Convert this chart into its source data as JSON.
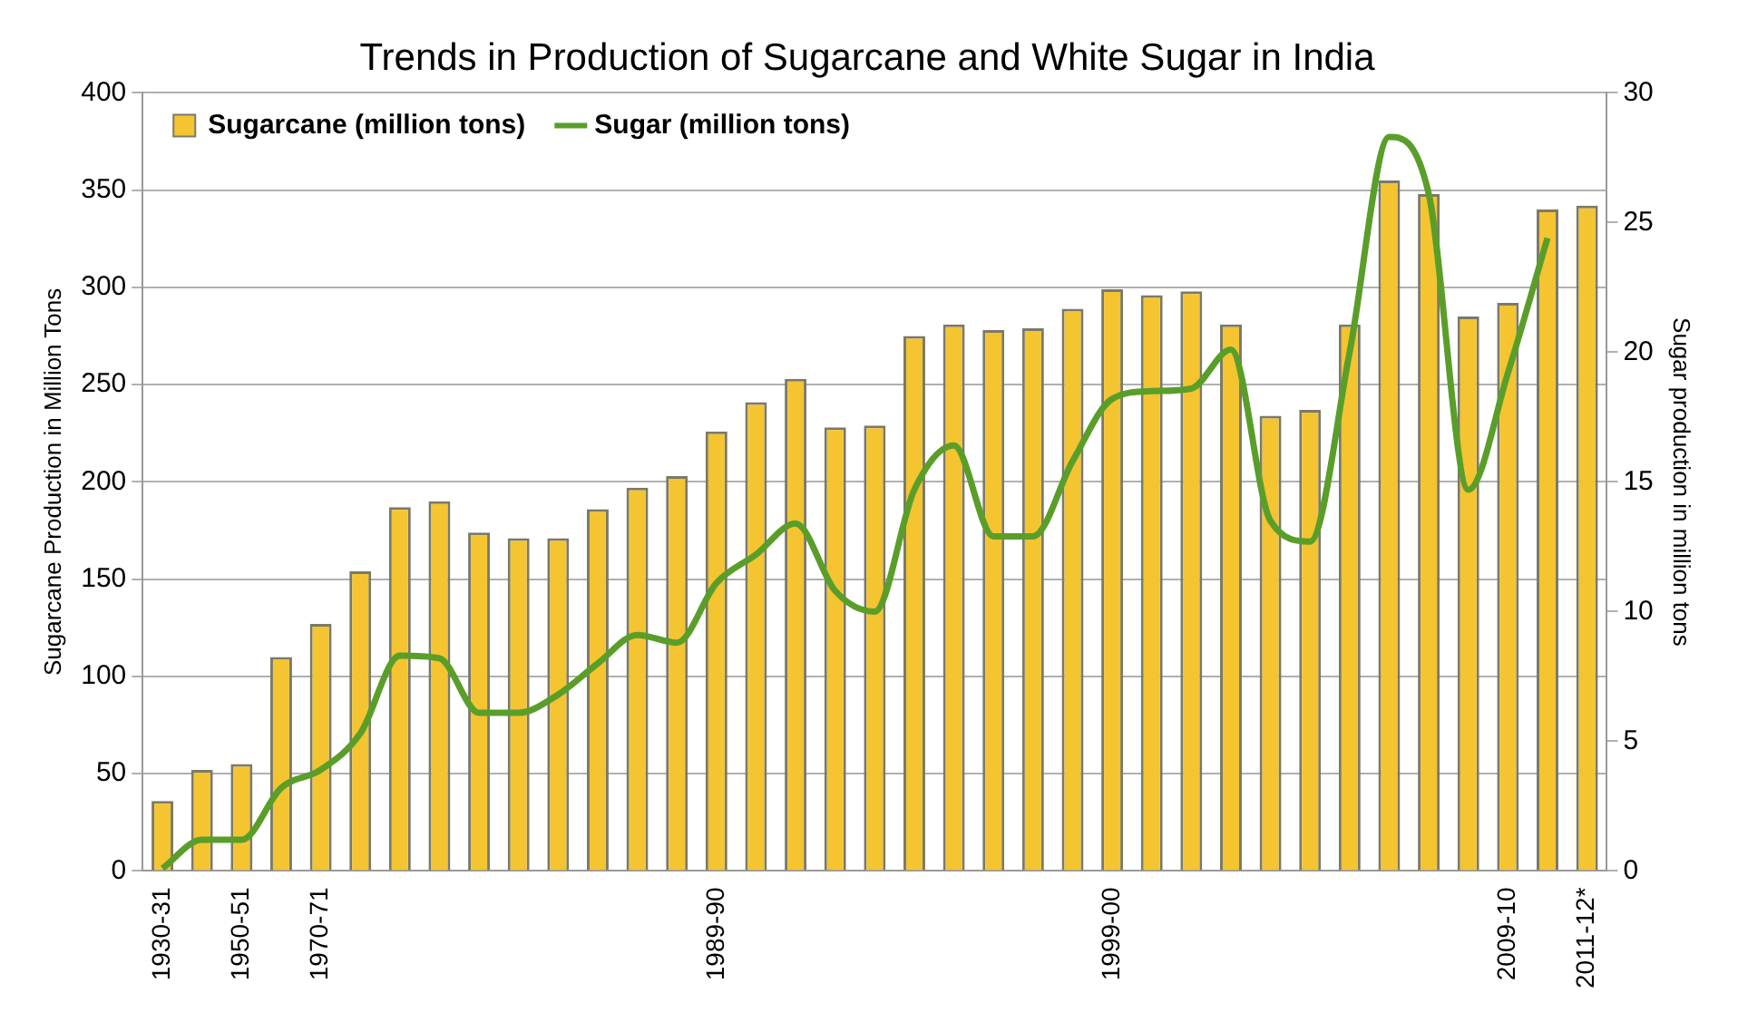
{
  "chart_data": {
    "type": "bar",
    "title": "Trends in Production of Sugarcane and White Sugar in India",
    "ylabel": "Sugarcane Production in Million Tons",
    "y2label": "Sugar production in million tons",
    "categories": [
      "1930-31",
      null,
      "1950-51",
      null,
      "1970-71",
      null,
      null,
      null,
      null,
      null,
      null,
      null,
      null,
      null,
      "1989-90",
      null,
      null,
      null,
      null,
      null,
      null,
      null,
      null,
      null,
      "1999-00",
      null,
      null,
      null,
      null,
      null,
      null,
      null,
      null,
      null,
      "2009-10",
      null,
      "2011-12*"
    ],
    "series": [
      {
        "name": "Sugarcane (million tons)",
        "color": "#f5c431",
        "values": [
          36,
          52,
          55,
          110,
          127,
          154,
          187,
          190,
          174,
          171,
          171,
          186,
          197,
          203,
          226,
          241,
          253,
          228,
          229,
          275,
          281,
          278,
          279,
          289,
          299,
          296,
          298,
          281,
          234,
          237,
          281,
          355,
          348,
          285,
          292,
          340,
          342
        ]
      },
      {
        "name": "Sugar (million tons)",
        "type": "line",
        "axis": "y2",
        "color": "#5a9e2a",
        "values": [
          0.1,
          1.2,
          1.2,
          3.2,
          3.9,
          5.3,
          8.3,
          8.2,
          6.1,
          6.1,
          6.8,
          8.0,
          9.1,
          8.8,
          11.1,
          12.2,
          13.4,
          10.8,
          10.0,
          14.7,
          16.4,
          12.9,
          12.9,
          15.8,
          18.2,
          18.5,
          18.6,
          20.1,
          13.5,
          12.7,
          20.0,
          28.3,
          26.1,
          14.7,
          19.2,
          24.4,
          null
        ]
      }
    ],
    "ylim": [
      0,
      400
    ],
    "yticks": [
      0,
      50,
      100,
      150,
      200,
      250,
      300,
      350,
      400
    ],
    "y2lim": [
      0,
      30
    ],
    "y2ticks": [
      0,
      5,
      10,
      15,
      20,
      25,
      30
    ],
    "grid": "y",
    "legend": "top left",
    "marker": "none",
    "line_style": "solid"
  }
}
